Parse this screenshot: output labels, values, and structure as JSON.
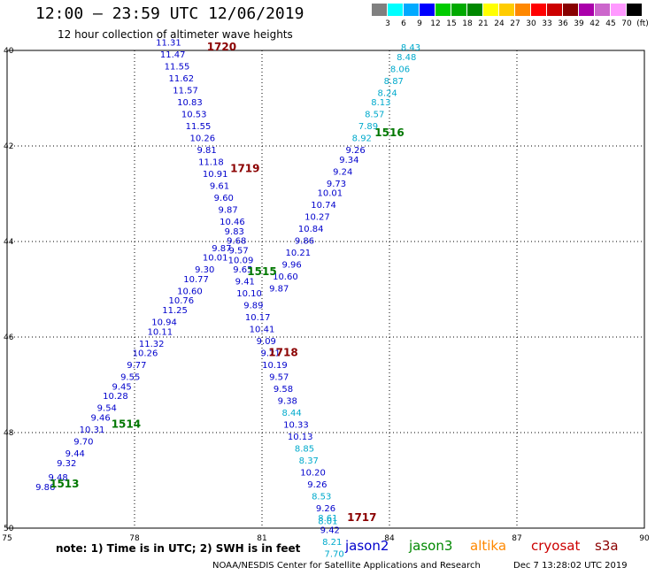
{
  "header": {
    "title": "12:00 – 23:59 UTC 12/06/2019",
    "subtitle": "12 hour collection of altimeter wave heights"
  },
  "scale_legend": {
    "colors": [
      "#808080",
      "#00ffff",
      "#00aaff",
      "#0000ff",
      "#00cc00",
      "#00aa00",
      "#008800",
      "#ffff00",
      "#ffcc00",
      "#ff8800",
      "#ff0000",
      "#cc0000",
      "#880000",
      "#aa00aa",
      "#cc66cc",
      "#ff99ff",
      "#000000"
    ],
    "labels": [
      "3",
      "6",
      "9",
      "12",
      "15",
      "18",
      "21",
      "24",
      "27",
      "30",
      "33",
      "36",
      "39",
      "42",
      "45",
      "70",
      "(ft)"
    ]
  },
  "map": {
    "lon_ticks": [
      "75",
      "78",
      "81",
      "84",
      "87",
      "90"
    ],
    "lat_ticks": [
      "40",
      "42",
      "44",
      "46",
      "48",
      "50"
    ],
    "readings": [
      {
        "lon": 75.9,
        "lat": 49.2,
        "value": "9.86",
        "color": "#0000cc"
      },
      {
        "lon": 76.2,
        "lat": 49.0,
        "value": "9.48",
        "color": "#0000cc"
      },
      {
        "lon": 76.4,
        "lat": 48.7,
        "value": "9.32",
        "color": "#0000cc"
      },
      {
        "lon": 76.6,
        "lat": 48.5,
        "value": "9.44",
        "color": "#0000cc"
      },
      {
        "lon": 76.8,
        "lat": 48.25,
        "value": "9.70",
        "color": "#0000cc"
      },
      {
        "lon": 77.0,
        "lat": 48.0,
        "value": "10.31",
        "color": "#0000cc"
      },
      {
        "lon": 77.2,
        "lat": 47.75,
        "value": "9.46",
        "color": "#0000cc"
      },
      {
        "lon": 77.35,
        "lat": 47.55,
        "value": "9.54",
        "color": "#0000cc"
      },
      {
        "lon": 77.55,
        "lat": 47.3,
        "value": "10.28",
        "color": "#0000cc"
      },
      {
        "lon": 77.7,
        "lat": 47.1,
        "value": "9.45",
        "color": "#0000cc"
      },
      {
        "lon": 77.9,
        "lat": 46.9,
        "value": "9.55",
        "color": "#0000cc"
      },
      {
        "lon": 78.05,
        "lat": 46.65,
        "value": "9.77",
        "color": "#0000cc"
      },
      {
        "lon": 78.25,
        "lat": 46.4,
        "value": "10.26",
        "color": "#0000cc"
      },
      {
        "lon": 78.4,
        "lat": 46.2,
        "value": "11.32",
        "color": "#0000cc"
      },
      {
        "lon": 78.6,
        "lat": 45.95,
        "value": "10.11",
        "color": "#0000cc"
      },
      {
        "lon": 78.7,
        "lat": 45.75,
        "value": "10.94",
        "color": "#0000cc"
      },
      {
        "lon": 78.95,
        "lat": 45.5,
        "value": "11.25",
        "color": "#0000cc"
      },
      {
        "lon": 79.1,
        "lat": 45.3,
        "value": "10.76",
        "color": "#0000cc"
      },
      {
        "lon": 79.3,
        "lat": 45.1,
        "value": "10.60",
        "color": "#0000cc"
      },
      {
        "lon": 79.45,
        "lat": 44.85,
        "value": "10.77",
        "color": "#0000cc"
      },
      {
        "lon": 79.65,
        "lat": 44.65,
        "value": "9.30",
        "color": "#0000cc"
      },
      {
        "lon": 79.9,
        "lat": 44.4,
        "value": "10.01",
        "color": "#0000cc"
      },
      {
        "lon": 80.05,
        "lat": 44.2,
        "value": "9.87",
        "color": "#0000cc"
      },
      {
        "lon": 78.8,
        "lat": 39.9,
        "value": "11.31",
        "color": "#0000cc"
      },
      {
        "lon": 78.9,
        "lat": 40.15,
        "value": "11.47",
        "color": "#0000cc"
      },
      {
        "lon": 79.0,
        "lat": 40.4,
        "value": "11.55",
        "color": "#0000cc"
      },
      {
        "lon": 79.1,
        "lat": 40.65,
        "value": "11.62",
        "color": "#0000cc"
      },
      {
        "lon": 79.2,
        "lat": 40.9,
        "value": "11.57",
        "color": "#0000cc"
      },
      {
        "lon": 79.3,
        "lat": 41.15,
        "value": "10.83",
        "color": "#0000cc"
      },
      {
        "lon": 79.4,
        "lat": 41.4,
        "value": "10.53",
        "color": "#0000cc"
      },
      {
        "lon": 79.5,
        "lat": 41.65,
        "value": "11.55",
        "color": "#0000cc"
      },
      {
        "lon": 79.6,
        "lat": 41.9,
        "value": "10.26",
        "color": "#0000cc"
      },
      {
        "lon": 79.7,
        "lat": 42.15,
        "value": "9.81",
        "color": "#0000cc"
      },
      {
        "lon": 79.8,
        "lat": 42.4,
        "value": "11.18",
        "color": "#0000cc"
      },
      {
        "lon": 79.9,
        "lat": 42.65,
        "value": "10.91",
        "color": "#0000cc"
      },
      {
        "lon": 80.0,
        "lat": 42.9,
        "value": "9.61",
        "color": "#0000cc"
      },
      {
        "lon": 80.1,
        "lat": 43.15,
        "value": "9.60",
        "color": "#0000cc"
      },
      {
        "lon": 80.2,
        "lat": 43.4,
        "value": "9.87",
        "color": "#0000cc"
      },
      {
        "lon": 80.3,
        "lat": 43.65,
        "value": "10.46",
        "color": "#0000cc"
      },
      {
        "lon": 80.35,
        "lat": 43.85,
        "value": "9.83",
        "color": "#0000cc"
      },
      {
        "lon": 80.4,
        "lat": 44.05,
        "value": "9.68",
        "color": "#0000cc"
      },
      {
        "lon": 80.45,
        "lat": 44.25,
        "value": "9.57",
        "color": "#0000cc"
      },
      {
        "lon": 80.5,
        "lat": 44.45,
        "value": "10.09",
        "color": "#0000cc"
      },
      {
        "lon": 80.55,
        "lat": 44.65,
        "value": "9.65",
        "color": "#0000cc"
      },
      {
        "lon": 80.6,
        "lat": 44.9,
        "value": "9.41",
        "color": "#0000cc"
      },
      {
        "lon": 80.7,
        "lat": 45.15,
        "value": "10.10",
        "color": "#0000cc"
      },
      {
        "lon": 80.8,
        "lat": 45.4,
        "value": "9.89",
        "color": "#0000cc"
      },
      {
        "lon": 80.9,
        "lat": 45.65,
        "value": "10.17",
        "color": "#0000cc"
      },
      {
        "lon": 81.0,
        "lat": 45.9,
        "value": "10.41",
        "color": "#0000cc"
      },
      {
        "lon": 81.1,
        "lat": 46.15,
        "value": "9.09",
        "color": "#0000cc"
      },
      {
        "lon": 81.2,
        "lat": 46.4,
        "value": "9.21",
        "color": "#0000cc"
      },
      {
        "lon": 81.3,
        "lat": 46.65,
        "value": "10.19",
        "color": "#0000cc"
      },
      {
        "lon": 81.4,
        "lat": 46.9,
        "value": "9.57",
        "color": "#0000cc"
      },
      {
        "lon": 81.5,
        "lat": 47.15,
        "value": "9.58",
        "color": "#0000cc"
      },
      {
        "lon": 81.6,
        "lat": 47.4,
        "value": "9.38",
        "color": "#0000cc"
      },
      {
        "lon": 81.7,
        "lat": 47.65,
        "value": "8.44",
        "color": "#00aacc"
      },
      {
        "lon": 81.8,
        "lat": 47.9,
        "value": "10.33",
        "color": "#0000cc"
      },
      {
        "lon": 81.9,
        "lat": 48.15,
        "value": "10.13",
        "color": "#0000cc"
      },
      {
        "lon": 82.0,
        "lat": 48.4,
        "value": "8.85",
        "color": "#00aacc"
      },
      {
        "lon": 82.1,
        "lat": 48.65,
        "value": "8.37",
        "color": "#00aacc"
      },
      {
        "lon": 82.2,
        "lat": 48.9,
        "value": "10.20",
        "color": "#0000cc"
      },
      {
        "lon": 82.3,
        "lat": 49.15,
        "value": "9.26",
        "color": "#0000cc"
      },
      {
        "lon": 82.4,
        "lat": 49.4,
        "value": "8.53",
        "color": "#00aacc"
      },
      {
        "lon": 82.5,
        "lat": 49.65,
        "value": "9.26",
        "color": "#0000cc"
      },
      {
        "lon": 82.55,
        "lat": 49.85,
        "value": "8.61",
        "color": "#00aacc"
      },
      {
        "lon": 82.55,
        "lat": 49.92,
        "value": "8.01",
        "color": "#00aacc"
      },
      {
        "lon": 82.6,
        "lat": 50.1,
        "value": "9.42",
        "color": "#0000cc"
      },
      {
        "lon": 82.65,
        "lat": 50.35,
        "value": "8.21",
        "color": "#00aacc"
      },
      {
        "lon": 82.7,
        "lat": 50.6,
        "value": "7.70",
        "color": "#00aacc"
      },
      {
        "lon": 84.5,
        "lat": 40.0,
        "value": "8.43",
        "color": "#00aacc"
      },
      {
        "lon": 84.4,
        "lat": 40.2,
        "value": "8.48",
        "color": "#00aacc"
      },
      {
        "lon": 84.25,
        "lat": 40.45,
        "value": "8.06",
        "color": "#00aacc"
      },
      {
        "lon": 84.1,
        "lat": 40.7,
        "value": "8.87",
        "color": "#00aacc"
      },
      {
        "lon": 83.95,
        "lat": 40.95,
        "value": "8.24",
        "color": "#00aacc"
      },
      {
        "lon": 83.8,
        "lat": 41.15,
        "value": "8.13",
        "color": "#00aacc"
      },
      {
        "lon": 83.65,
        "lat": 41.4,
        "value": "8.57",
        "color": "#00aacc"
      },
      {
        "lon": 83.5,
        "lat": 41.65,
        "value": "7.89",
        "color": "#00aacc"
      },
      {
        "lon": 83.35,
        "lat": 41.9,
        "value": "8.92",
        "color": "#00aacc"
      },
      {
        "lon": 83.2,
        "lat": 42.15,
        "value": "9.26",
        "color": "#0000cc"
      },
      {
        "lon": 83.05,
        "lat": 42.35,
        "value": "9.34",
        "color": "#0000cc"
      },
      {
        "lon": 82.9,
        "lat": 42.6,
        "value": "9.24",
        "color": "#0000cc"
      },
      {
        "lon": 82.75,
        "lat": 42.85,
        "value": "9.73",
        "color": "#0000cc"
      },
      {
        "lon": 82.6,
        "lat": 43.05,
        "value": "10.01",
        "color": "#0000cc"
      },
      {
        "lon": 82.45,
        "lat": 43.3,
        "value": "10.74",
        "color": "#0000cc"
      },
      {
        "lon": 82.3,
        "lat": 43.55,
        "value": "10.27",
        "color": "#0000cc"
      },
      {
        "lon": 82.15,
        "lat": 43.8,
        "value": "10.84",
        "color": "#0000cc"
      },
      {
        "lon": 82.0,
        "lat": 44.05,
        "value": "9.86",
        "color": "#0000cc"
      },
      {
        "lon": 81.85,
        "lat": 44.3,
        "value": "10.21",
        "color": "#0000cc"
      },
      {
        "lon": 81.7,
        "lat": 44.55,
        "value": "9.96",
        "color": "#0000cc"
      },
      {
        "lon": 81.55,
        "lat": 44.8,
        "value": "10.60",
        "color": "#0000cc"
      },
      {
        "lon": 81.4,
        "lat": 45.05,
        "value": "9.87",
        "color": "#0000cc"
      }
    ],
    "track_labels": [
      {
        "lon": 80.05,
        "lat": 40.0,
        "text": "1720",
        "color": "#8b0000"
      },
      {
        "lon": 80.6,
        "lat": 42.55,
        "text": "1719",
        "color": "#8b0000"
      },
      {
        "lon": 81.0,
        "lat": 44.7,
        "text": "1515",
        "color": "#007700"
      },
      {
        "lon": 84.0,
        "lat": 41.8,
        "text": "1516",
        "color": "#007700"
      },
      {
        "lon": 81.5,
        "lat": 46.4,
        "text": "1718",
        "color": "#8b0000"
      },
      {
        "lon": 77.8,
        "lat": 47.9,
        "text": "1514",
        "color": "#007700"
      },
      {
        "lon": 76.35,
        "lat": 49.15,
        "text": "1513",
        "color": "#007700"
      },
      {
        "lon": 83.35,
        "lat": 49.85,
        "text": "1717",
        "color": "#8b0000"
      }
    ]
  },
  "footer": {
    "note": "note:  1) Time is in UTC;  2) SWH is in feet",
    "satellites": [
      {
        "name": "jason2",
        "color": "#0000cc"
      },
      {
        "name": "jason3",
        "color": "#008800"
      },
      {
        "name": "altika",
        "color": "#ff8800"
      },
      {
        "name": "cryosat",
        "color": "#cc0000"
      },
      {
        "name": "s3a",
        "color": "#8b0000"
      }
    ],
    "credit": "NOAA/NESDIS Center for Satellite Applications and Research",
    "timestamp": "Dec  7 13:28:02 UTC 2019"
  }
}
